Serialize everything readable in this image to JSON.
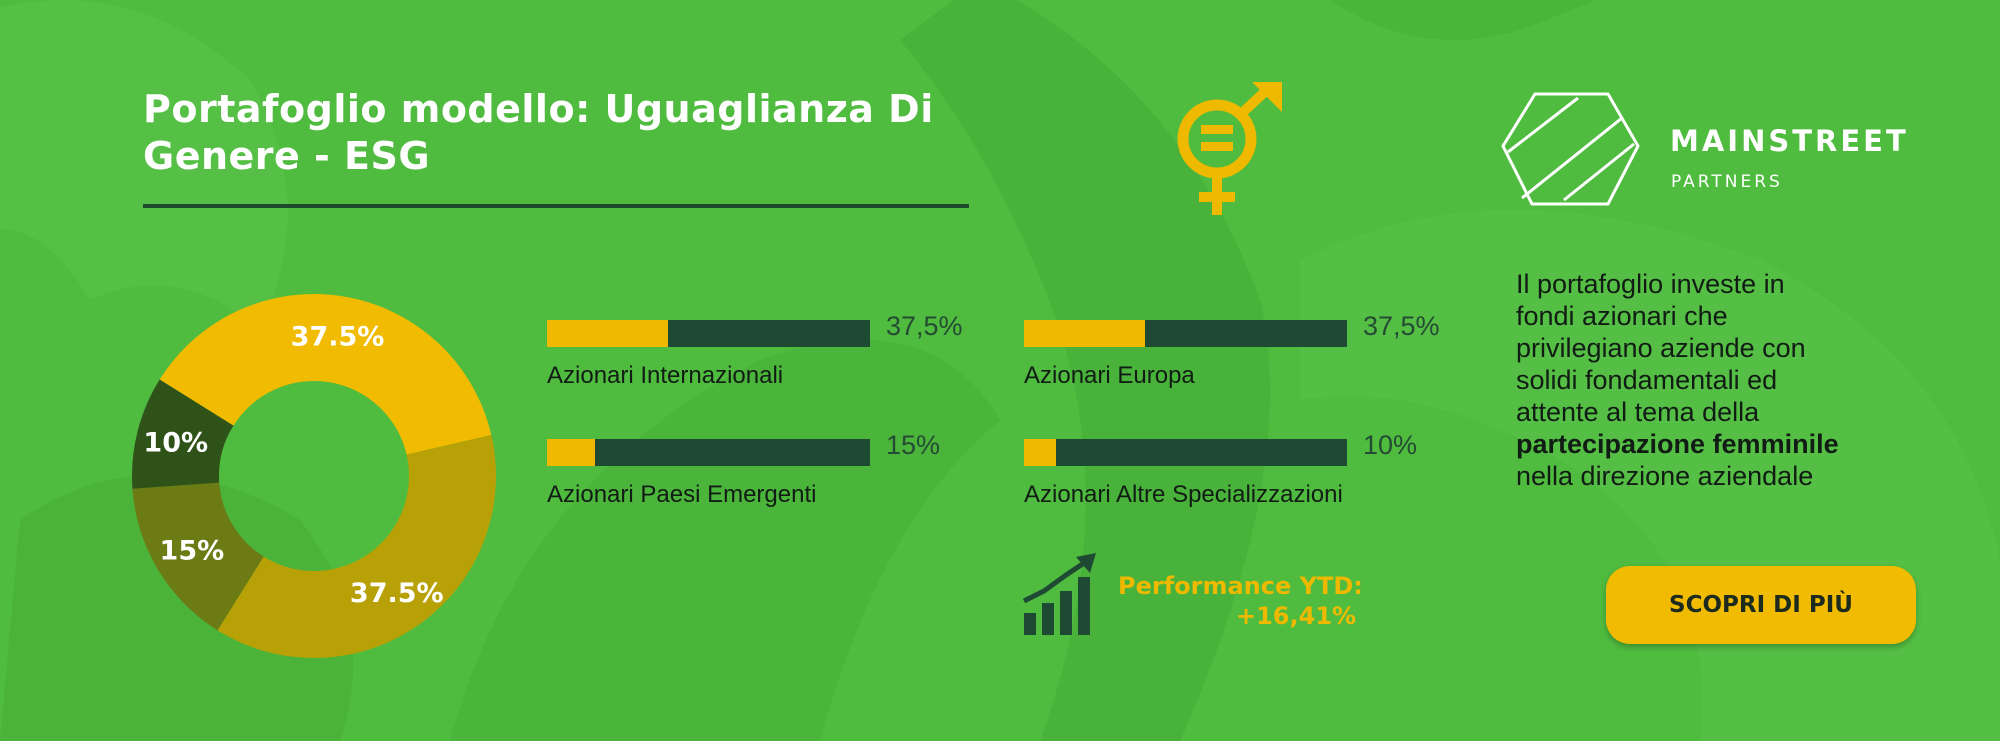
{
  "banner": {
    "title_line1": "Portafoglio modello: Uguaglianza Di",
    "title_line2": "Genere - ESG",
    "brand": {
      "name": "MAINSTREET",
      "subtitle": "PARTNERS"
    },
    "description": {
      "lines": [
        "Il portafoglio investe in",
        "fondi azionari che",
        "privilegiano aziende con",
        "solidi fondamentali ed",
        "attente al tema della"
      ],
      "highlight": "partecipazione femminile",
      "ending": "nella direzione aziendale"
    },
    "cta_label": "SCOPRI DI PIÙ",
    "performance": {
      "label": "Performance YTD:",
      "value": "+16,41%",
      "icon": "growth-chart-icon"
    },
    "icons": {
      "gender": "gender-equality-icon",
      "logo": "mainstreet-logo-icon"
    }
  },
  "chart_data": [
    {
      "type": "pie",
      "variant": "donut",
      "slices": [
        {
          "label": "37.5%",
          "value": 37.5,
          "color": "#f0bb00"
        },
        {
          "label": "37.5%",
          "value": 37.5,
          "color": "#b8a106"
        },
        {
          "label": "15%",
          "value": 15,
          "color": "#6c7b14"
        },
        {
          "label": "10%",
          "value": 10,
          "color": "#2f5219"
        }
      ]
    },
    {
      "type": "bar",
      "orientation": "horizontal",
      "max": 100,
      "fill_color": "#efb900",
      "track_color": "#1e4a33",
      "bars": [
        {
          "category": "Azionari Internazionali",
          "value": 37.5,
          "value_label": "37,5%"
        },
        {
          "category": "Azionari Europa",
          "value": 37.5,
          "value_label": "37,5%"
        },
        {
          "category": "Azionari Paesi Emergenti",
          "value": 15,
          "value_label": "15%"
        },
        {
          "category": "Azionari Altre Specializzazioni",
          "value": 10,
          "value_label": "10%"
        }
      ]
    }
  ]
}
